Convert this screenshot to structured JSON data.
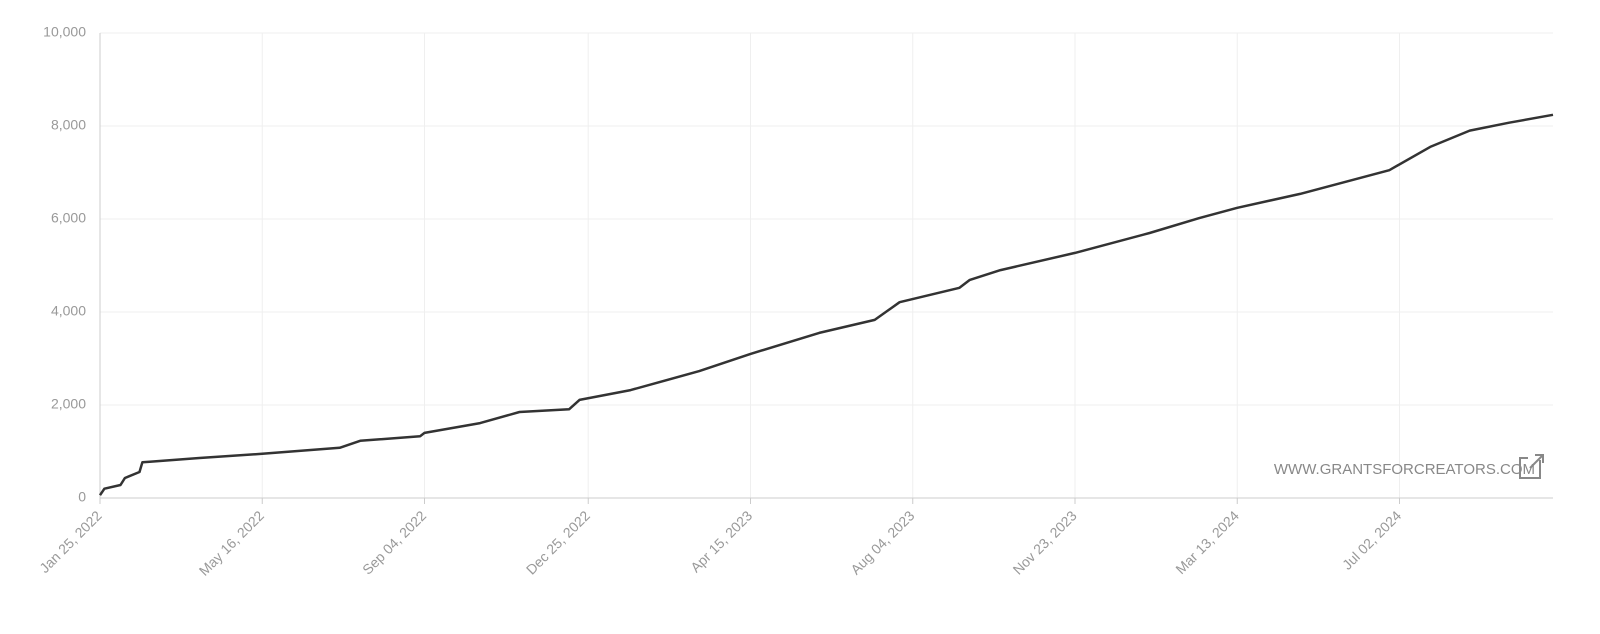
{
  "chart_data": {
    "type": "line",
    "x": [
      "2022-01-25",
      "2022-01-28",
      "2022-02-08",
      "2022-02-11",
      "2022-02-21",
      "2022-02-23",
      "2022-02-28",
      "2022-04-03",
      "2022-05-16",
      "2022-07-08",
      "2022-07-22",
      "2022-09-01",
      "2022-09-04",
      "2022-10-12",
      "2022-11-08",
      "2022-12-12",
      "2022-12-19",
      "2023-01-23",
      "2023-03-11",
      "2023-04-15",
      "2023-06-01",
      "2023-07-09",
      "2023-07-26",
      "2023-09-05",
      "2023-09-12",
      "2023-10-03",
      "2023-11-23",
      "2024-01-13",
      "2024-02-16",
      "2024-03-13",
      "2024-04-25",
      "2024-06-25",
      "2024-07-23",
      "2024-08-19",
      "2024-09-15",
      "2024-10-15"
    ],
    "values": [
      60,
      200,
      280,
      430,
      560,
      770,
      780,
      860,
      950,
      1080,
      1230,
      1330,
      1400,
      1610,
      1850,
      1910,
      2110,
      2320,
      2730,
      3100,
      3550,
      3830,
      4210,
      4520,
      4690,
      4900,
      5270,
      5700,
      6020,
      6240,
      6540,
      7050,
      7550,
      7900,
      8070,
      8240
    ],
    "color": "#333333",
    "xlim": [
      "2022-01-25",
      "2024-10-15"
    ],
    "xticks": [
      {
        "value": "2022-01-25",
        "label": "Jan 25, 2022"
      },
      {
        "value": "2022-05-16",
        "label": "May 16, 2022"
      },
      {
        "value": "2022-09-04",
        "label": "Sep 04, 2022"
      },
      {
        "value": "2022-12-25",
        "label": "Dec 25, 2022"
      },
      {
        "value": "2023-04-15",
        "label": "Apr 15, 2023"
      },
      {
        "value": "2023-08-04",
        "label": "Aug 04, 2023"
      },
      {
        "value": "2023-11-23",
        "label": "Nov 23, 2023"
      },
      {
        "value": "2024-03-13",
        "label": "Mar 13, 2024"
      },
      {
        "value": "2024-07-02",
        "label": "Jul 02, 2024"
      }
    ],
    "ylim": [
      0,
      10000
    ],
    "yticks": [
      0,
      {
        "value": 2000,
        "label": "2,000"
      },
      {
        "value": 4000,
        "label": "4,000"
      },
      {
        "value": 6000,
        "label": "6,000"
      },
      {
        "value": 8000,
        "label": "8,000"
      },
      {
        "value": 10000,
        "label": "10,000"
      }
    ],
    "grid": true,
    "watermark": "WWW.GRANTSFORCREATORS.COM"
  }
}
